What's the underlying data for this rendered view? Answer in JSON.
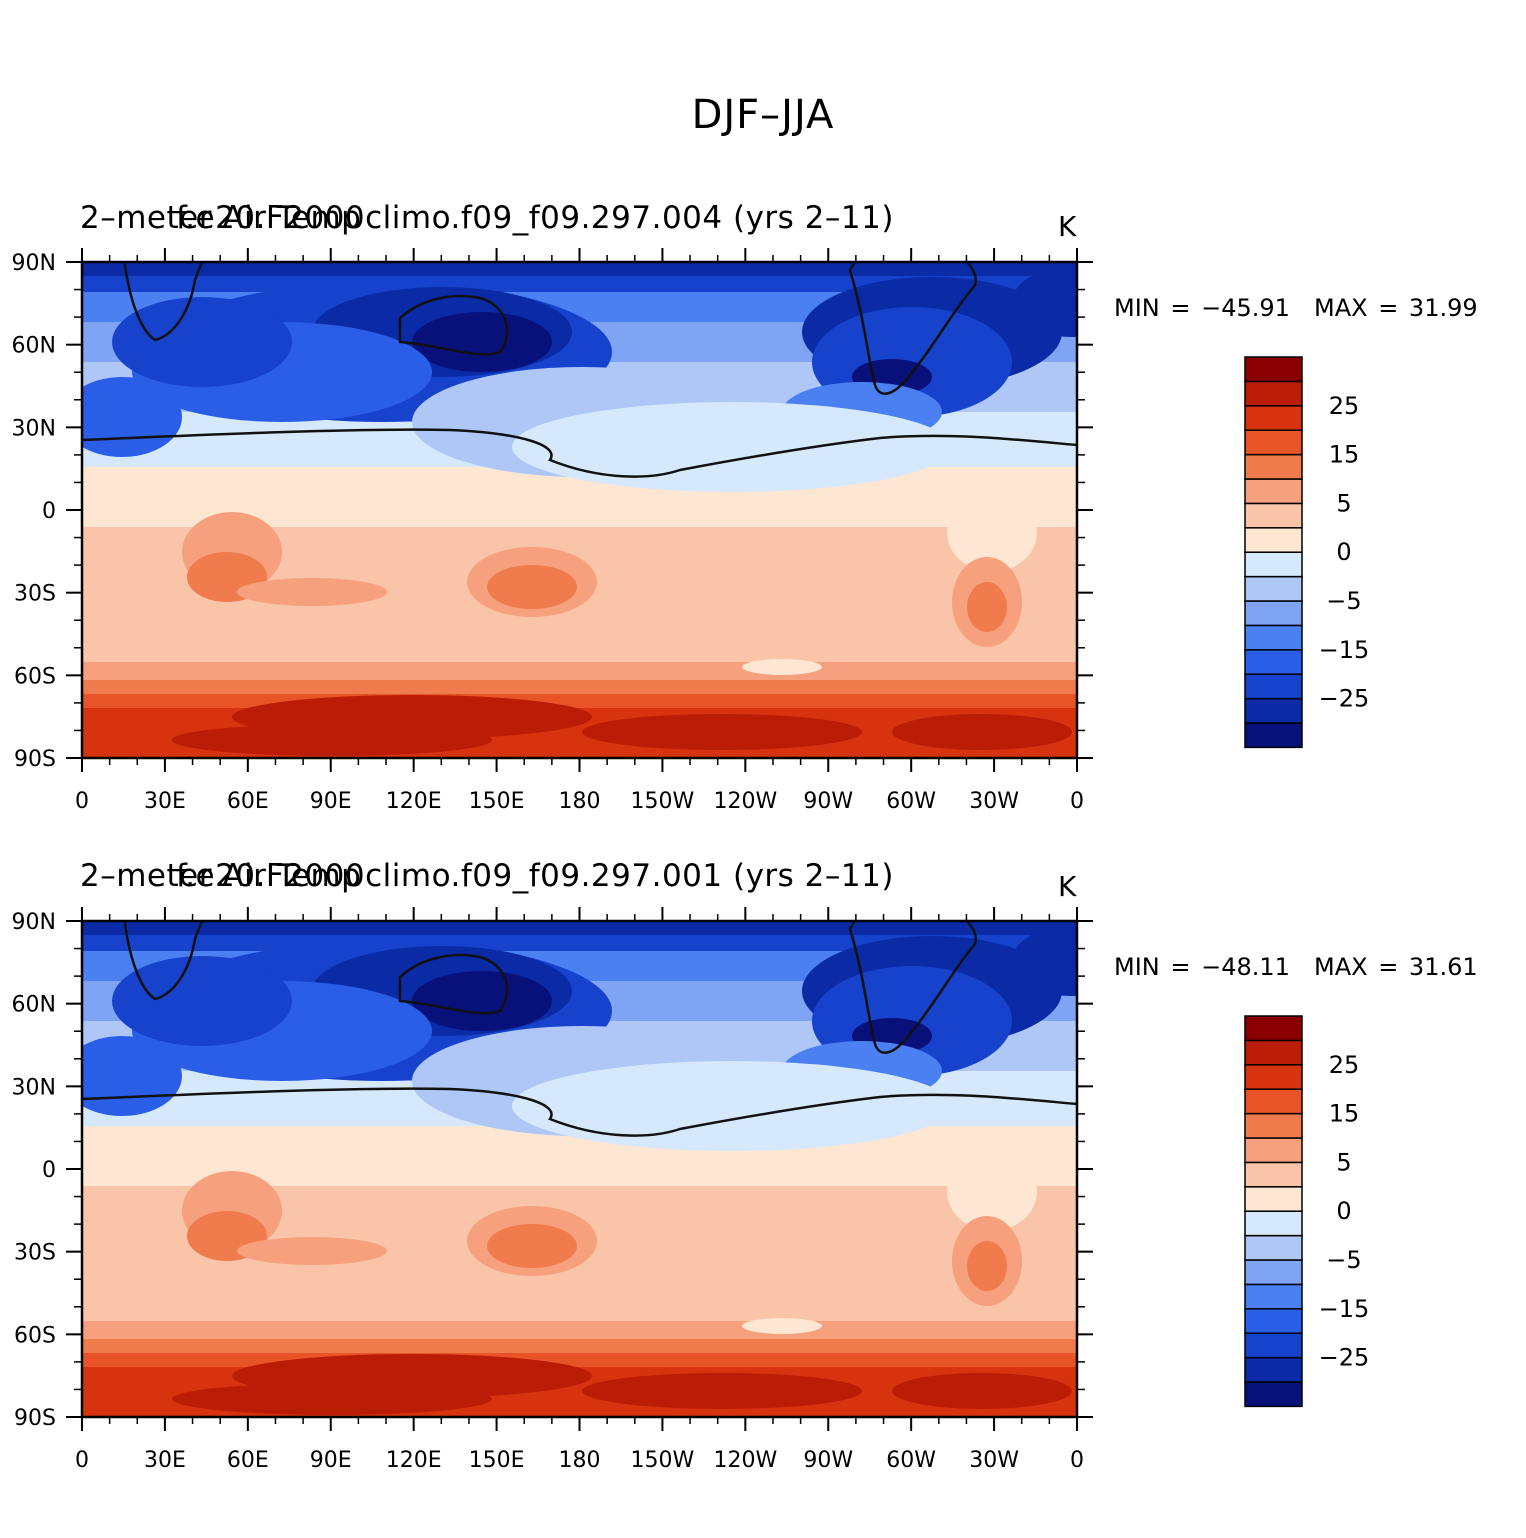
{
  "title": "DJF–JJA",
  "panels": [
    {
      "id": "top",
      "variable": "2–meter Air Temp",
      "case": "f.e20.F2000climo.f09_f09.297.004 (yrs 2–11)",
      "units": "K",
      "min_label": "MIN = −45.91",
      "max_label": "MAX =   31.99"
    },
    {
      "id": "bottom",
      "variable": "2–meter Air Temp",
      "case": "f.e20.F2000climo.f09_f09.297.001 (yrs 2–11)",
      "units": "K",
      "min_label": "MIN = −48.11",
      "max_label": "MAX =   31.61"
    }
  ],
  "lat_ticks": [
    "90N",
    "60N",
    "30N",
    "0",
    "30S",
    "60S",
    "90S"
  ],
  "lon_ticks": [
    "0",
    "30E",
    "60E",
    "90E",
    "120E",
    "150E",
    "180",
    "150W",
    "120W",
    "90W",
    "60W",
    "30W",
    "0"
  ],
  "colorbar": {
    "colors": [
      "#08107a",
      "#0a2aa6",
      "#1642cc",
      "#2a5ee6",
      "#4a80f2",
      "#7fa4f4",
      "#aec7f7",
      "#d6e8fb",
      "#fde6d2",
      "#f9c4a8",
      "#f6a07e",
      "#f07c4e",
      "#e85428",
      "#d8330f",
      "#bb1c06",
      "#8a0000"
    ],
    "labels": [
      "25",
      "15",
      "5",
      "0",
      "−5",
      "−15",
      "−25"
    ]
  }
}
